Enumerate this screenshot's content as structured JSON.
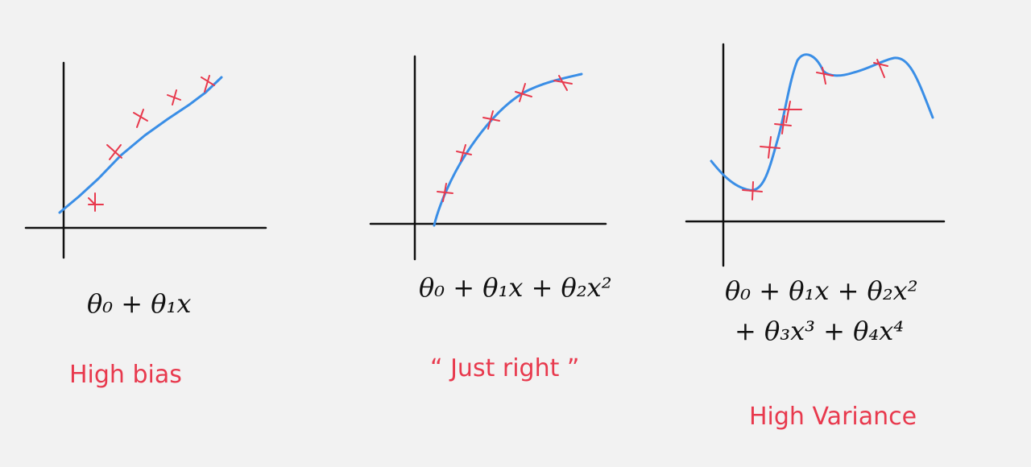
{
  "colors": {
    "background": "#f2f2f2",
    "axis": "#111111",
    "curve": "#3a8ee6",
    "marker": "#e8394d",
    "label": "#e8394d",
    "formula": "#111111"
  },
  "panels": [
    {
      "formula": "θ₀ + θ₁x",
      "formula_line2": "",
      "label": "High bias",
      "curve_shape": "straight line",
      "marker_symbol": "x"
    },
    {
      "formula": "θ₀ + θ₁x + θ₂x²",
      "formula_line2": "",
      "label": "“ Just right ”",
      "curve_shape": "smooth quadratic curve",
      "marker_symbol": "x"
    },
    {
      "formula": "θ₀ + θ₁x + θ₂x²",
      "formula_line2": "+ θ₃x³ + θ₄x⁴",
      "label": "High Variance",
      "curve_shape": "wiggly high-order polynomial",
      "marker_symbol": "x"
    }
  ]
}
